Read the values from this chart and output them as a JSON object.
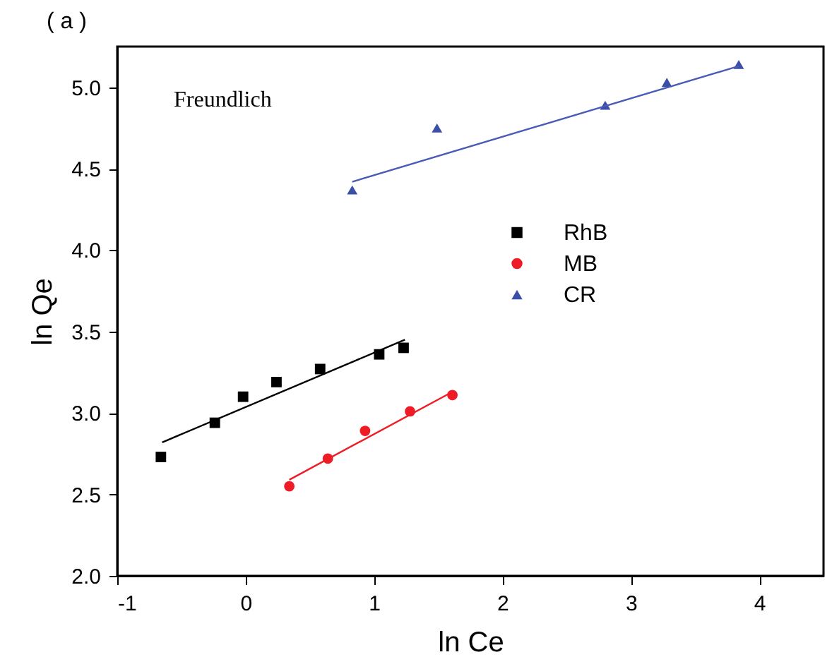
{
  "chart_data": {
    "type": "scatter",
    "xlabel": "ln Ce",
    "ylabel": "ln Qe",
    "annotations": [
      "( a )",
      "Freundlich"
    ],
    "xlim": [
      -1,
      4.5
    ],
    "xticks": [
      -1,
      0,
      1,
      2,
      3,
      4
    ],
    "ylim": [
      2.0,
      5.25
    ],
    "yticks": [
      {
        "value": 2.0,
        "label": "2.0"
      },
      {
        "value": 2.5,
        "label": "2.5"
      },
      {
        "value": 3.0,
        "label": "3.0"
      },
      {
        "value": 3.5,
        "label": "3.5"
      },
      {
        "value": 4.0,
        "label": "4.0"
      },
      {
        "value": 4.5,
        "label": "4.5"
      },
      {
        "value": 5.0,
        "label": "5.0"
      }
    ],
    "grid": false,
    "legend": "right",
    "series": [
      {
        "name": "RhB",
        "color": "#000000",
        "marker": "square",
        "x": [
          -0.66,
          -0.24,
          -0.02,
          0.24,
          0.58,
          1.04,
          1.23
        ],
        "values": [
          2.73,
          2.94,
          3.1,
          3.19,
          3.27,
          3.36,
          3.4
        ]
      },
      {
        "name": "MB",
        "color": "#ee1c25",
        "marker": "circle",
        "x": [
          0.34,
          0.64,
          0.93,
          1.28,
          1.61
        ],
        "values": [
          2.55,
          2.72,
          2.89,
          3.01,
          3.11
        ]
      },
      {
        "name": "CR",
        "color": "#3a4fa5",
        "marker": "triangle",
        "x": [
          0.83,
          1.49,
          2.8,
          3.28,
          3.84
        ],
        "values": [
          4.37,
          4.75,
          4.89,
          5.03,
          5.14
        ]
      },
      {
        "type": "line",
        "color": "#000000",
        "line_style": "solid",
        "x": [
          -0.65,
          1.24
        ],
        "values": [
          2.82,
          3.45
        ]
      },
      {
        "type": "line",
        "color": "#ee1c25",
        "line_style": "solid",
        "x": [
          0.34,
          1.61
        ],
        "values": [
          2.59,
          3.13
        ]
      },
      {
        "type": "line",
        "color": "#4a5ab5",
        "line_style": "solid",
        "x": [
          0.83,
          3.84
        ],
        "values": [
          4.42,
          5.13
        ]
      }
    ]
  }
}
